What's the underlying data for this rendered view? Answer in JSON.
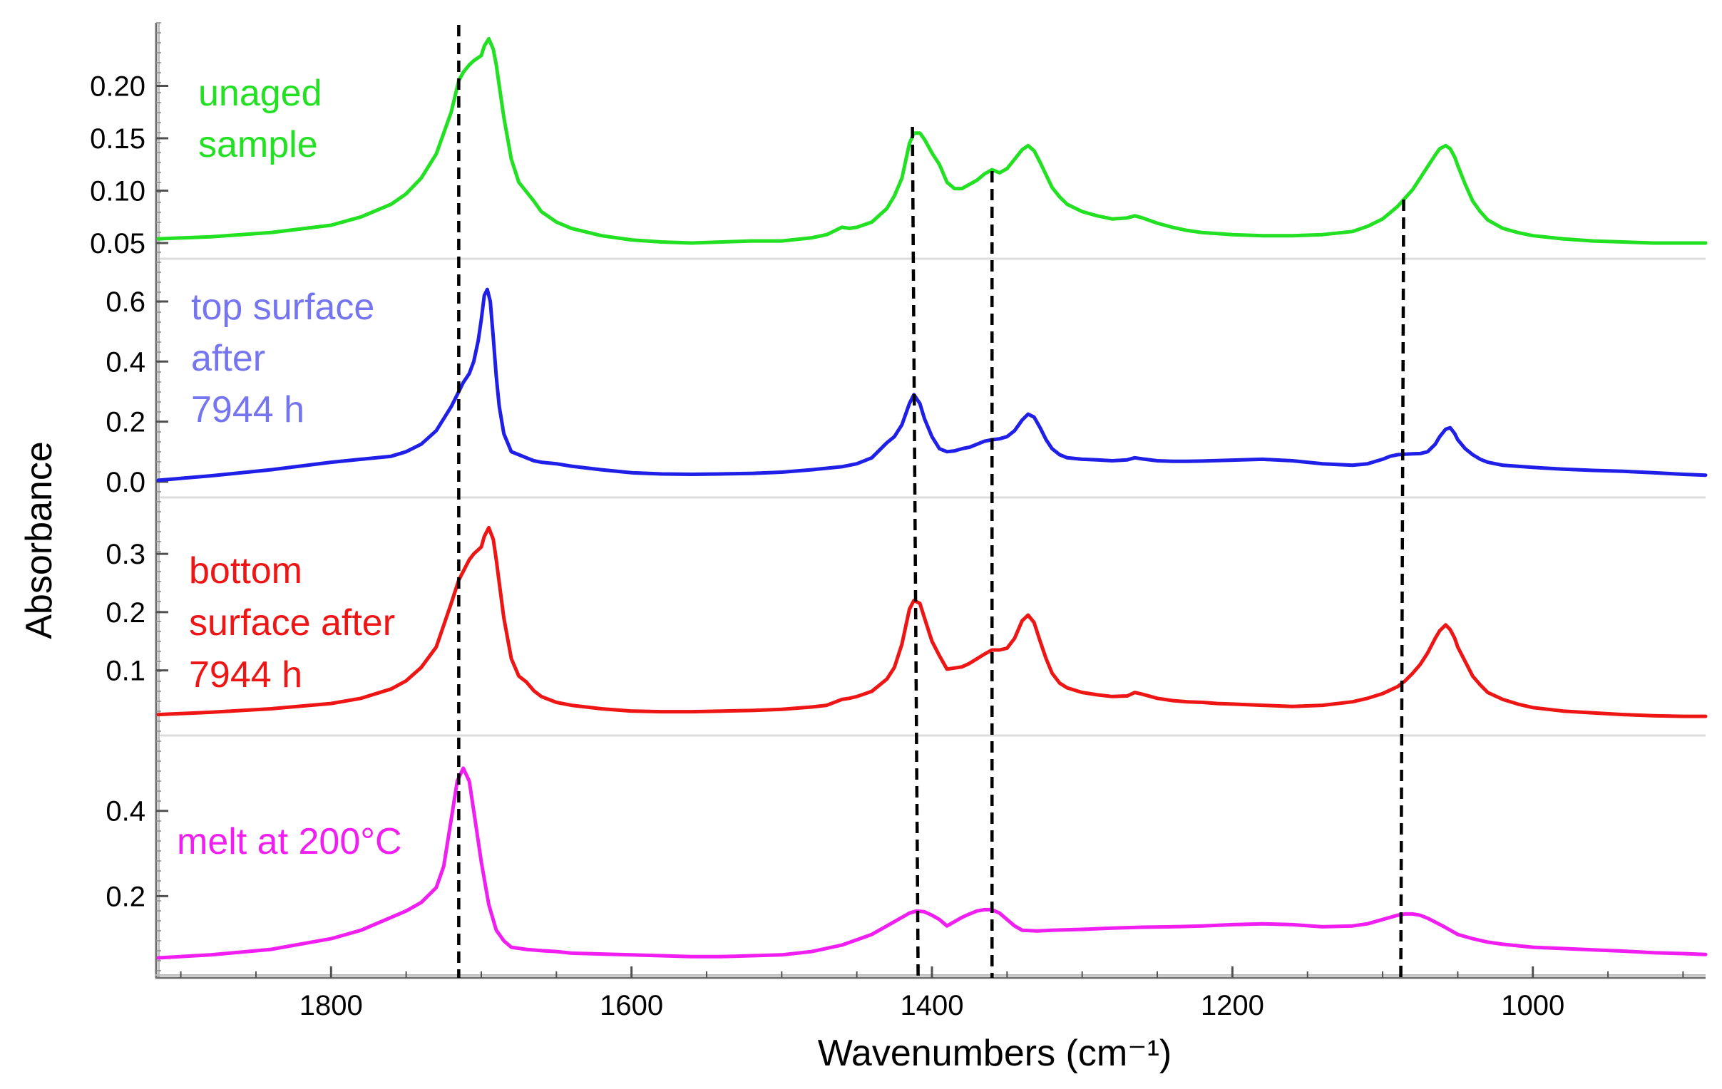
{
  "chart_data": {
    "type": "line",
    "title": "",
    "xlabel": "Wavenumbers (cm⁻¹)",
    "ylabel": "Absorbance",
    "xlim": [
      1915,
      885
    ],
    "x_ticks": [
      1800,
      1600,
      1400,
      1200,
      1000
    ],
    "x_tick_labels": [
      "1800",
      "1600",
      "1400",
      "1200",
      "1000"
    ],
    "grid": false,
    "reference_lines": [
      1715,
      1413,
      1360,
      1086
    ],
    "panels": [
      {
        "name": "unaged",
        "label_lines": [
          "unaged",
          "sample"
        ],
        "color": "#22e022",
        "ylim": [
          0.05,
          0.25
        ],
        "y_ticks": [
          0.05,
          0.1,
          0.15,
          0.2
        ],
        "y_tick_labels": [
          "0.05",
          "0.10",
          "0.15",
          "0.20"
        ],
        "x": [
          1915,
          1880,
          1840,
          1800,
          1780,
          1760,
          1750,
          1740,
          1730,
          1720,
          1715,
          1712,
          1708,
          1705,
          1700,
          1698,
          1695,
          1692,
          1690,
          1688,
          1685,
          1680,
          1675,
          1670,
          1665,
          1660,
          1650,
          1640,
          1620,
          1600,
          1580,
          1560,
          1540,
          1520,
          1500,
          1480,
          1470,
          1460,
          1455,
          1450,
          1440,
          1430,
          1425,
          1420,
          1415,
          1412,
          1408,
          1405,
          1400,
          1395,
          1390,
          1385,
          1380,
          1375,
          1370,
          1365,
          1360,
          1355,
          1350,
          1345,
          1340,
          1336,
          1332,
          1328,
          1324,
          1320,
          1315,
          1310,
          1300,
          1290,
          1280,
          1270,
          1265,
          1260,
          1250,
          1240,
          1230,
          1220,
          1210,
          1200,
          1180,
          1160,
          1140,
          1120,
          1110,
          1100,
          1095,
          1090,
          1085,
          1080,
          1075,
          1070,
          1065,
          1062,
          1058,
          1055,
          1052,
          1050,
          1045,
          1040,
          1035,
          1030,
          1020,
          1010,
          1000,
          980,
          960,
          940,
          920,
          900,
          885
        ],
        "y": [
          0.054,
          0.056,
          0.06,
          0.067,
          0.075,
          0.087,
          0.097,
          0.112,
          0.135,
          0.175,
          0.205,
          0.213,
          0.22,
          0.224,
          0.229,
          0.238,
          0.245,
          0.235,
          0.22,
          0.2,
          0.17,
          0.13,
          0.108,
          0.099,
          0.09,
          0.08,
          0.07,
          0.064,
          0.057,
          0.053,
          0.051,
          0.05,
          0.051,
          0.052,
          0.052,
          0.055,
          0.058,
          0.065,
          0.064,
          0.065,
          0.07,
          0.083,
          0.095,
          0.112,
          0.145,
          0.155,
          0.155,
          0.149,
          0.136,
          0.125,
          0.108,
          0.102,
          0.102,
          0.106,
          0.11,
          0.116,
          0.12,
          0.117,
          0.121,
          0.13,
          0.139,
          0.143,
          0.138,
          0.127,
          0.115,
          0.103,
          0.094,
          0.087,
          0.08,
          0.076,
          0.073,
          0.074,
          0.076,
          0.074,
          0.069,
          0.065,
          0.062,
          0.06,
          0.059,
          0.058,
          0.057,
          0.057,
          0.058,
          0.061,
          0.066,
          0.073,
          0.079,
          0.085,
          0.093,
          0.101,
          0.112,
          0.123,
          0.134,
          0.14,
          0.143,
          0.14,
          0.132,
          0.124,
          0.106,
          0.09,
          0.08,
          0.072,
          0.064,
          0.06,
          0.057,
          0.054,
          0.052,
          0.051,
          0.05,
          0.05,
          0.05
        ]
      },
      {
        "name": "top-surface",
        "label_lines": [
          "top surface",
          "after",
          "7944 h"
        ],
        "color": "#1f1fe8",
        "label_color": "#7575f0",
        "ylim": [
          0.0,
          0.69
        ],
        "y_ticks": [
          0.0,
          0.2,
          0.4,
          0.6
        ],
        "y_tick_labels": [
          "0.0",
          "0.2",
          "0.4",
          "0.6"
        ],
        "x": [
          1915,
          1880,
          1840,
          1800,
          1780,
          1760,
          1750,
          1740,
          1730,
          1720,
          1715,
          1712,
          1708,
          1705,
          1702,
          1700,
          1698,
          1696,
          1694,
          1692,
          1690,
          1688,
          1685,
          1680,
          1675,
          1670,
          1665,
          1660,
          1650,
          1640,
          1620,
          1600,
          1580,
          1560,
          1540,
          1520,
          1500,
          1480,
          1460,
          1450,
          1440,
          1430,
          1425,
          1420,
          1415,
          1412,
          1408,
          1405,
          1400,
          1395,
          1390,
          1385,
          1380,
          1375,
          1370,
          1365,
          1360,
          1355,
          1350,
          1345,
          1340,
          1336,
          1332,
          1328,
          1324,
          1320,
          1315,
          1310,
          1300,
          1290,
          1280,
          1270,
          1265,
          1260,
          1250,
          1240,
          1230,
          1220,
          1200,
          1180,
          1160,
          1140,
          1120,
          1110,
          1100,
          1095,
          1090,
          1085,
          1080,
          1075,
          1070,
          1065,
          1062,
          1058,
          1055,
          1052,
          1050,
          1045,
          1040,
          1035,
          1030,
          1020,
          1000,
          980,
          960,
          940,
          920,
          900,
          885
        ],
        "y": [
          0.005,
          0.02,
          0.04,
          0.065,
          0.075,
          0.085,
          0.1,
          0.125,
          0.17,
          0.25,
          0.3,
          0.33,
          0.36,
          0.4,
          0.47,
          0.54,
          0.62,
          0.64,
          0.6,
          0.48,
          0.35,
          0.25,
          0.16,
          0.1,
          0.09,
          0.08,
          0.07,
          0.065,
          0.06,
          0.052,
          0.04,
          0.03,
          0.026,
          0.025,
          0.026,
          0.028,
          0.032,
          0.04,
          0.05,
          0.06,
          0.08,
          0.13,
          0.15,
          0.19,
          0.26,
          0.29,
          0.26,
          0.21,
          0.15,
          0.11,
          0.1,
          0.103,
          0.11,
          0.115,
          0.125,
          0.135,
          0.14,
          0.143,
          0.15,
          0.17,
          0.205,
          0.225,
          0.215,
          0.18,
          0.14,
          0.11,
          0.09,
          0.08,
          0.075,
          0.073,
          0.07,
          0.073,
          0.08,
          0.076,
          0.07,
          0.068,
          0.068,
          0.069,
          0.072,
          0.075,
          0.07,
          0.06,
          0.055,
          0.06,
          0.075,
          0.085,
          0.09,
          0.092,
          0.093,
          0.094,
          0.1,
          0.125,
          0.15,
          0.175,
          0.18,
          0.16,
          0.14,
          0.11,
          0.09,
          0.075,
          0.065,
          0.055,
          0.048,
          0.042,
          0.038,
          0.035,
          0.03,
          0.025,
          0.022
        ]
      },
      {
        "name": "bottom-surface",
        "label_lines": [
          "bottom",
          "surface after",
          "7944 h"
        ],
        "color": "#ee1515",
        "ylim": [
          0.015,
          0.37
        ],
        "y_ticks": [
          0.1,
          0.2,
          0.3
        ],
        "y_tick_labels": [
          "0.1",
          "0.2",
          "0.3"
        ],
        "x": [
          1915,
          1880,
          1840,
          1800,
          1780,
          1760,
          1750,
          1740,
          1730,
          1720,
          1715,
          1712,
          1708,
          1705,
          1700,
          1698,
          1695,
          1692,
          1690,
          1688,
          1685,
          1680,
          1675,
          1670,
          1665,
          1660,
          1650,
          1640,
          1620,
          1600,
          1580,
          1560,
          1540,
          1520,
          1500,
          1480,
          1470,
          1460,
          1455,
          1450,
          1440,
          1430,
          1425,
          1420,
          1415,
          1412,
          1408,
          1405,
          1400,
          1395,
          1390,
          1385,
          1380,
          1375,
          1370,
          1365,
          1360,
          1355,
          1350,
          1345,
          1340,
          1336,
          1332,
          1328,
          1324,
          1320,
          1315,
          1310,
          1300,
          1290,
          1280,
          1270,
          1265,
          1260,
          1250,
          1240,
          1230,
          1220,
          1210,
          1200,
          1180,
          1160,
          1140,
          1120,
          1110,
          1100,
          1095,
          1090,
          1085,
          1080,
          1075,
          1070,
          1065,
          1062,
          1058,
          1055,
          1052,
          1050,
          1045,
          1040,
          1035,
          1030,
          1020,
          1010,
          1000,
          980,
          960,
          940,
          920,
          900,
          885
        ],
        "y": [
          0.024,
          0.028,
          0.034,
          0.043,
          0.052,
          0.068,
          0.082,
          0.105,
          0.14,
          0.215,
          0.255,
          0.27,
          0.29,
          0.3,
          0.312,
          0.33,
          0.345,
          0.325,
          0.29,
          0.25,
          0.19,
          0.12,
          0.09,
          0.08,
          0.065,
          0.055,
          0.045,
          0.04,
          0.034,
          0.03,
          0.029,
          0.029,
          0.03,
          0.031,
          0.033,
          0.037,
          0.04,
          0.05,
          0.052,
          0.055,
          0.064,
          0.085,
          0.105,
          0.145,
          0.205,
          0.22,
          0.215,
          0.19,
          0.15,
          0.125,
          0.102,
          0.104,
          0.106,
          0.112,
          0.12,
          0.128,
          0.135,
          0.135,
          0.138,
          0.155,
          0.185,
          0.195,
          0.182,
          0.15,
          0.12,
          0.095,
          0.078,
          0.07,
          0.062,
          0.058,
          0.055,
          0.056,
          0.062,
          0.059,
          0.052,
          0.048,
          0.046,
          0.045,
          0.043,
          0.042,
          0.04,
          0.038,
          0.04,
          0.046,
          0.052,
          0.06,
          0.066,
          0.072,
          0.082,
          0.095,
          0.11,
          0.13,
          0.155,
          0.168,
          0.178,
          0.17,
          0.155,
          0.14,
          0.115,
          0.09,
          0.075,
          0.062,
          0.05,
          0.042,
          0.036,
          0.03,
          0.027,
          0.024,
          0.022,
          0.021,
          0.021
        ]
      },
      {
        "name": "melt",
        "label_lines": [
          "melt at 200°C"
        ],
        "color": "#f01ef0",
        "ylim": [
          0.045,
          0.54
        ],
        "y_ticks": [
          0.2,
          0.4
        ],
        "y_tick_labels": [
          "0.2",
          "0.4"
        ],
        "x": [
          1915,
          1880,
          1840,
          1800,
          1780,
          1760,
          1750,
          1740,
          1730,
          1725,
          1720,
          1716,
          1712,
          1708,
          1705,
          1700,
          1695,
          1690,
          1685,
          1680,
          1670,
          1660,
          1650,
          1640,
          1620,
          1600,
          1580,
          1560,
          1540,
          1520,
          1500,
          1480,
          1460,
          1440,
          1430,
          1420,
          1415,
          1410,
          1405,
          1400,
          1395,
          1390,
          1385,
          1380,
          1375,
          1370,
          1365,
          1360,
          1355,
          1350,
          1345,
          1340,
          1330,
          1320,
          1300,
          1280,
          1260,
          1240,
          1220,
          1200,
          1180,
          1160,
          1140,
          1120,
          1110,
          1100,
          1095,
          1090,
          1085,
          1080,
          1075,
          1070,
          1060,
          1050,
          1040,
          1030,
          1020,
          1000,
          980,
          960,
          940,
          920,
          900,
          885
        ],
        "y": [
          0.055,
          0.062,
          0.075,
          0.1,
          0.12,
          0.15,
          0.165,
          0.185,
          0.22,
          0.27,
          0.38,
          0.47,
          0.5,
          0.47,
          0.4,
          0.28,
          0.18,
          0.12,
          0.095,
          0.08,
          0.075,
          0.072,
          0.07,
          0.066,
          0.064,
          0.062,
          0.06,
          0.058,
          0.058,
          0.06,
          0.062,
          0.07,
          0.085,
          0.11,
          0.13,
          0.15,
          0.16,
          0.165,
          0.163,
          0.155,
          0.145,
          0.13,
          0.14,
          0.15,
          0.158,
          0.165,
          0.168,
          0.168,
          0.16,
          0.145,
          0.13,
          0.12,
          0.118,
          0.12,
          0.122,
          0.125,
          0.127,
          0.128,
          0.13,
          0.133,
          0.135,
          0.133,
          0.128,
          0.13,
          0.135,
          0.145,
          0.15,
          0.155,
          0.158,
          0.158,
          0.155,
          0.148,
          0.13,
          0.11,
          0.1,
          0.092,
          0.087,
          0.08,
          0.077,
          0.074,
          0.071,
          0.067,
          0.065,
          0.063
        ]
      }
    ]
  }
}
